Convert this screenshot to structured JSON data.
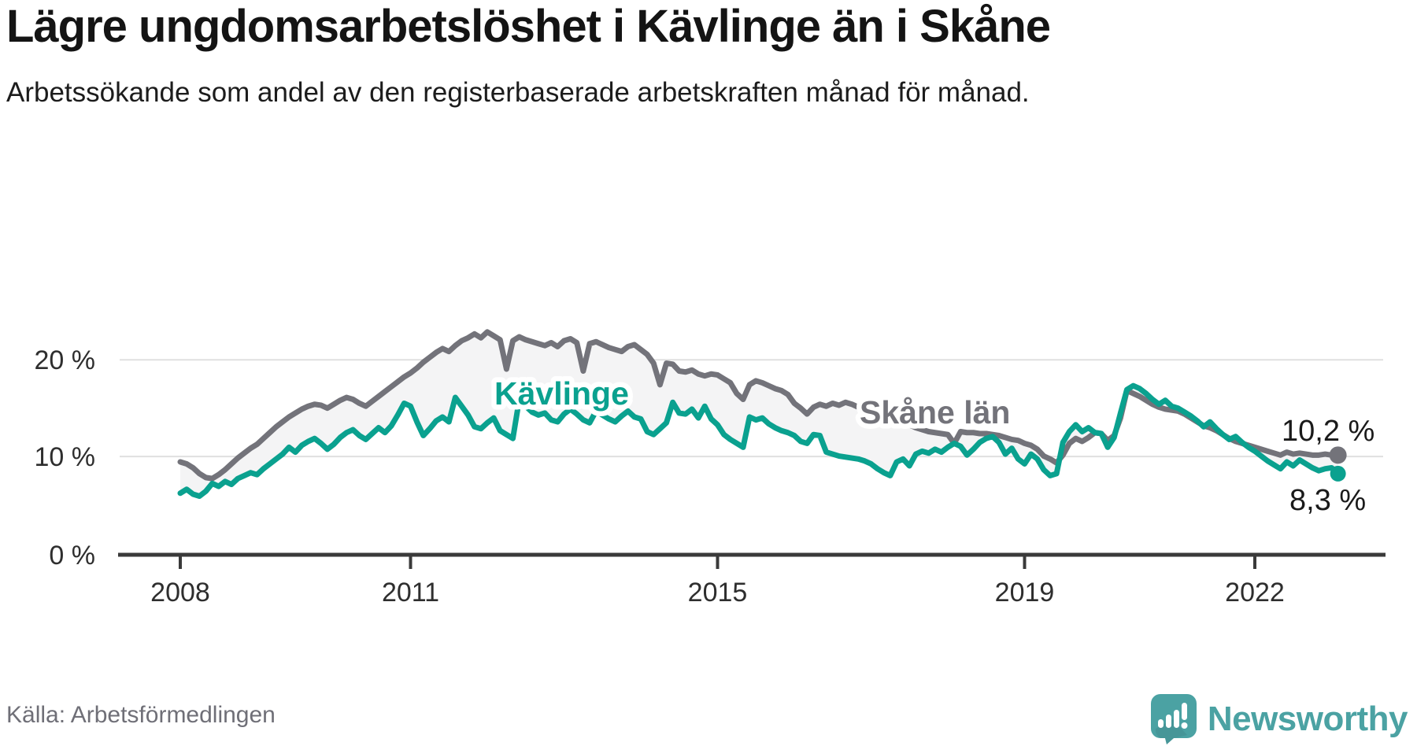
{
  "header": {
    "title": "Lägre ungdomsarbetslöshet i Kävlinge än i Skåne",
    "subtitle": "Arbetssökande som andel av den registerbaserade arbetskraften månad för månad."
  },
  "footer": {
    "source": "Källa: Arbetsförmedlingen",
    "brand": "Newsworthy"
  },
  "colors": {
    "kavlinge_teal": "#0aa18f",
    "skane_gray": "#73737a",
    "between_area_fill": "#f4f4f5",
    "grid_line": "#e0e0e0",
    "axis_line": "#3a3a3a",
    "brand_teal": "#4ba2a3"
  },
  "chart_data": {
    "type": "line",
    "title": "Lägre ungdomsarbetslöshet i Kävlinge än i Skåne",
    "subtitle": "Arbetssökande som andel av den registerbaserade arbetskraften månad för månad.",
    "unit": "%",
    "frequency": "monthly",
    "x_start": "2008-01",
    "x_end": "2023-02",
    "ylim": [
      0,
      23
    ],
    "grid": "horizontal",
    "legend_position": "inline-labels",
    "y_tickvalues": [
      20,
      10,
      0
    ],
    "y_ticklabels": [
      "20 %",
      "10 %",
      "0 %"
    ],
    "x_tickyears": [
      2008,
      2011,
      2015,
      2019,
      2022
    ],
    "x_ticklabels": [
      "2008",
      "2011",
      "2015",
      "2019",
      "2022"
    ],
    "series": [
      {
        "name": "Kävlinge",
        "color": "#0aa18f",
        "end_label": "8,3 %",
        "last_value": 8.3,
        "values": [
          6.3,
          6.7,
          6.2,
          6.0,
          6.5,
          7.3,
          7.0,
          7.5,
          7.2,
          7.8,
          8.1,
          8.4,
          8.2,
          8.8,
          9.3,
          9.8,
          10.3,
          11.0,
          10.5,
          11.2,
          11.6,
          11.9,
          11.4,
          10.8,
          11.3,
          12.0,
          12.5,
          12.8,
          12.2,
          11.8,
          12.4,
          13.0,
          12.5,
          13.2,
          14.3,
          15.5,
          15.2,
          13.6,
          12.2,
          12.9,
          13.7,
          14.1,
          13.6,
          16.1,
          15.2,
          14.3,
          13.1,
          12.9,
          13.5,
          14.0,
          12.7,
          12.3,
          11.9,
          15.9,
          15.2,
          14.6,
          14.3,
          14.5,
          13.8,
          13.6,
          14.4,
          14.9,
          14.4,
          13.8,
          13.5,
          14.7,
          14.3,
          13.9,
          13.6,
          14.2,
          14.7,
          14.1,
          13.9,
          12.6,
          12.3,
          12.9,
          13.5,
          15.6,
          14.5,
          14.4,
          14.9,
          14.0,
          15.2,
          13.9,
          13.3,
          12.3,
          11.8,
          11.4,
          11.0,
          14.1,
          13.8,
          14.0,
          13.4,
          13.0,
          12.7,
          12.5,
          12.2,
          11.6,
          11.4,
          12.3,
          12.2,
          10.5,
          10.3,
          10.1,
          10.0,
          9.9,
          9.8,
          9.6,
          9.3,
          8.8,
          8.4,
          8.1,
          9.5,
          9.8,
          9.1,
          10.3,
          10.6,
          10.4,
          10.8,
          10.5,
          11.0,
          11.4,
          11.1,
          10.2,
          10.8,
          11.5,
          11.9,
          12.1,
          11.5,
          10.3,
          10.9,
          9.8,
          9.3,
          10.3,
          9.8,
          8.7,
          8.1,
          8.3,
          11.5,
          12.6,
          13.3,
          12.6,
          13.0,
          12.5,
          12.4,
          11.0,
          12.0,
          14.5,
          16.9,
          17.3,
          17.0,
          16.5,
          15.9,
          15.4,
          15.8,
          15.2,
          15.0,
          14.6,
          14.2,
          13.7,
          13.1,
          13.6,
          12.9,
          12.3,
          11.8,
          12.1,
          11.5,
          11.0,
          10.6,
          10.1,
          9.6,
          9.2,
          8.8,
          9.5,
          9.1,
          9.7,
          9.3,
          8.9,
          8.6,
          8.8,
          8.9,
          8.3
        ]
      },
      {
        "name": "Skåne län",
        "color": "#73737a",
        "end_label": "10,2 %",
        "last_value": 10.2,
        "values": [
          9.5,
          9.3,
          8.9,
          8.3,
          7.9,
          7.8,
          8.2,
          8.7,
          9.3,
          9.9,
          10.4,
          10.9,
          11.3,
          11.9,
          12.5,
          13.1,
          13.6,
          14.1,
          14.5,
          14.9,
          15.2,
          15.4,
          15.3,
          15.0,
          15.4,
          15.8,
          16.1,
          15.9,
          15.5,
          15.2,
          15.7,
          16.2,
          16.7,
          17.2,
          17.7,
          18.2,
          18.6,
          19.1,
          19.7,
          20.2,
          20.7,
          21.1,
          20.8,
          21.4,
          21.9,
          22.2,
          22.6,
          22.2,
          22.8,
          22.4,
          22.0,
          19.0,
          21.9,
          22.3,
          22.0,
          21.8,
          21.6,
          21.4,
          21.7,
          21.3,
          21.9,
          22.1,
          21.7,
          18.8,
          21.6,
          21.8,
          21.5,
          21.2,
          21.0,
          20.8,
          21.3,
          21.5,
          21.0,
          20.5,
          19.6,
          17.4,
          19.6,
          19.5,
          18.8,
          18.7,
          18.9,
          18.5,
          18.3,
          18.5,
          18.4,
          18.0,
          17.6,
          16.5,
          15.9,
          17.4,
          17.8,
          17.6,
          17.3,
          17.0,
          16.8,
          16.4,
          15.5,
          15.0,
          14.4,
          15.1,
          15.4,
          15.2,
          15.5,
          15.3,
          15.6,
          15.4,
          15.1,
          14.9,
          14.6,
          14.4,
          14.2,
          14.0,
          13.8,
          13.6,
          13.3,
          13.0,
          12.8,
          12.6,
          12.5,
          12.4,
          12.3,
          11.4,
          12.6,
          12.5,
          12.5,
          12.4,
          12.4,
          12.3,
          12.2,
          12.0,
          11.8,
          11.7,
          11.4,
          11.2,
          10.8,
          10.1,
          9.8,
          9.4,
          10.2,
          11.4,
          11.9,
          11.6,
          12.0,
          12.5,
          12.4,
          11.7,
          12.2,
          14.0,
          16.8,
          16.5,
          16.2,
          15.8,
          15.4,
          15.1,
          14.9,
          14.8,
          14.7,
          14.4,
          14.0,
          13.6,
          13.2,
          13.0,
          12.7,
          12.3,
          11.9,
          11.6,
          11.4,
          11.2,
          11.0,
          10.8,
          10.6,
          10.4,
          10.2,
          10.5,
          10.3,
          10.4,
          10.3,
          10.2,
          10.2,
          10.3,
          10.2,
          10.2
        ]
      }
    ]
  }
}
